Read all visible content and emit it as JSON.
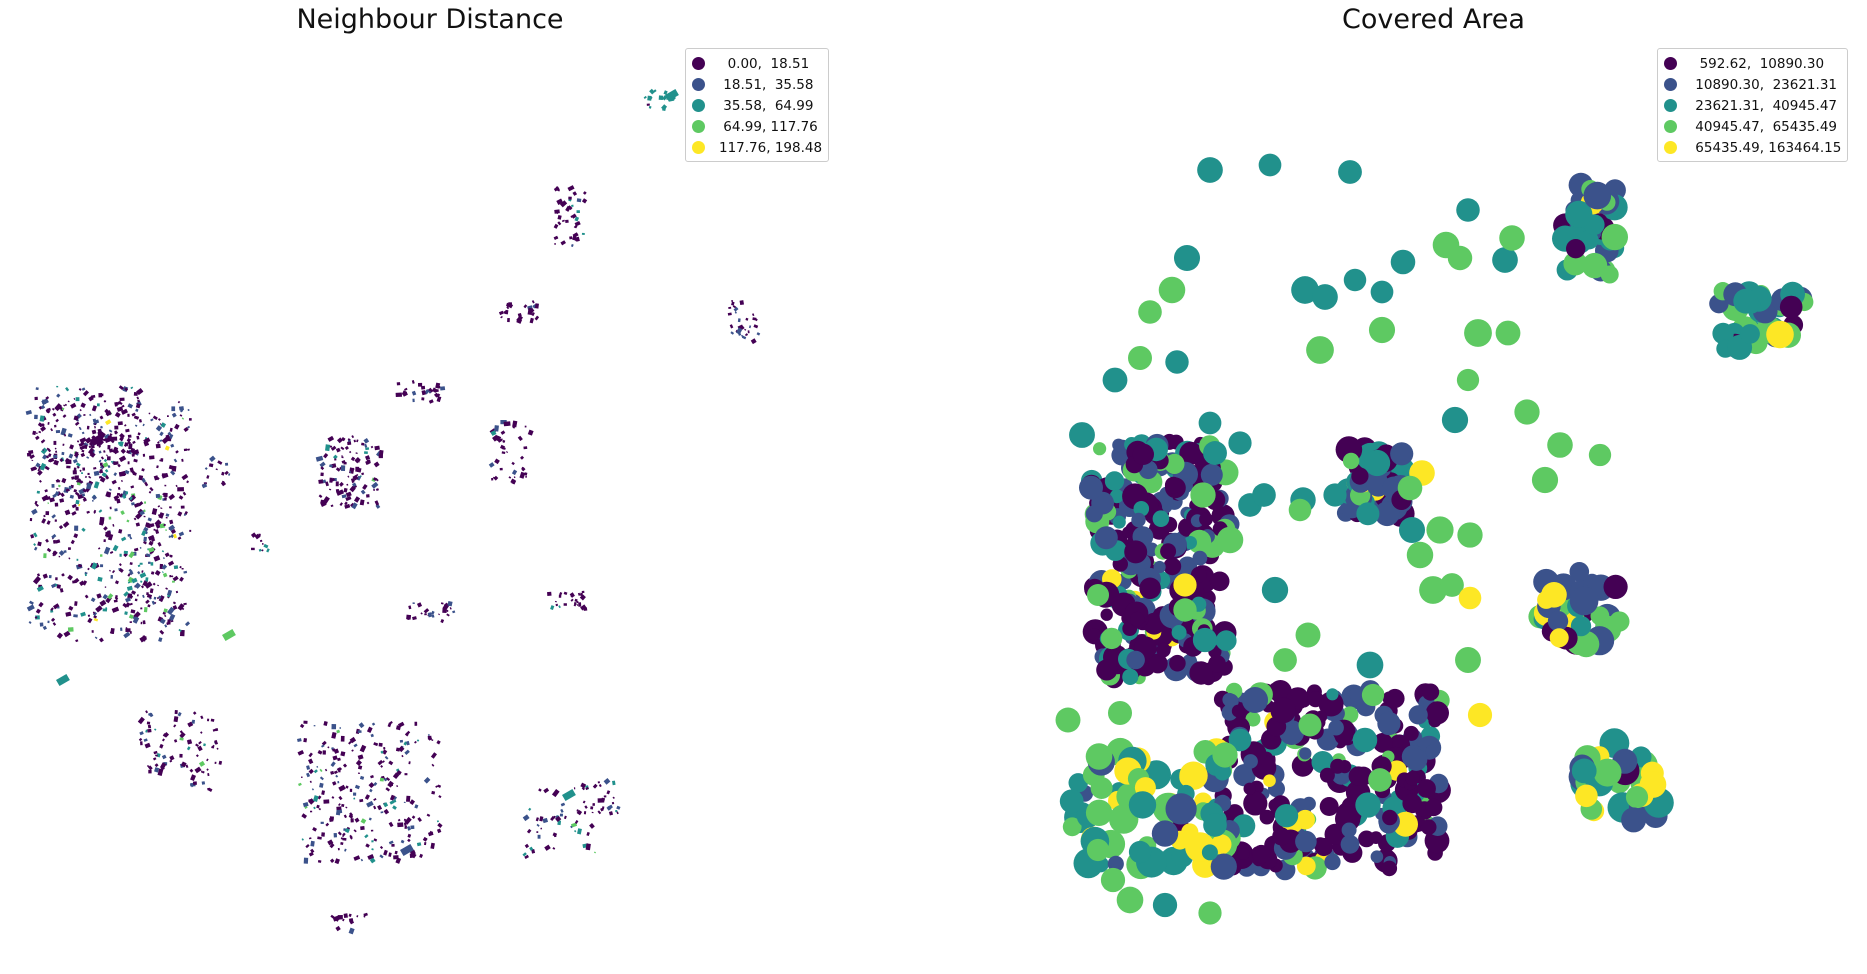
{
  "maps": [
    {
      "title": "Neighbour Distance",
      "legend": [
        {
          "label": "  0.00,  18.51",
          "color": "#440154"
        },
        {
          "label": " 18.51,  35.58",
          "color": "#3b528b"
        },
        {
          "label": " 35.58,  64.99",
          "color": "#21918c"
        },
        {
          "label": " 64.99, 117.76",
          "color": "#5ec962"
        },
        {
          "label": "117.76, 198.48",
          "color": "#fde725"
        }
      ]
    },
    {
      "title": "Covered Area",
      "legend": [
        {
          "label": "  592.62,  10890.30",
          "color": "#440154"
        },
        {
          "label": " 10890.30,  23621.31",
          "color": "#3b528b"
        },
        {
          "label": " 23621.31,  40945.47",
          "color": "#21918c"
        },
        {
          "label": " 40945.47,  65435.49",
          "color": "#5ec962"
        },
        {
          "label": " 65435.49, 163464.15",
          "color": "#fde725"
        }
      ]
    }
  ],
  "palette": [
    "#440154",
    "#3b528b",
    "#21918c",
    "#5ec962",
    "#fde725"
  ]
}
